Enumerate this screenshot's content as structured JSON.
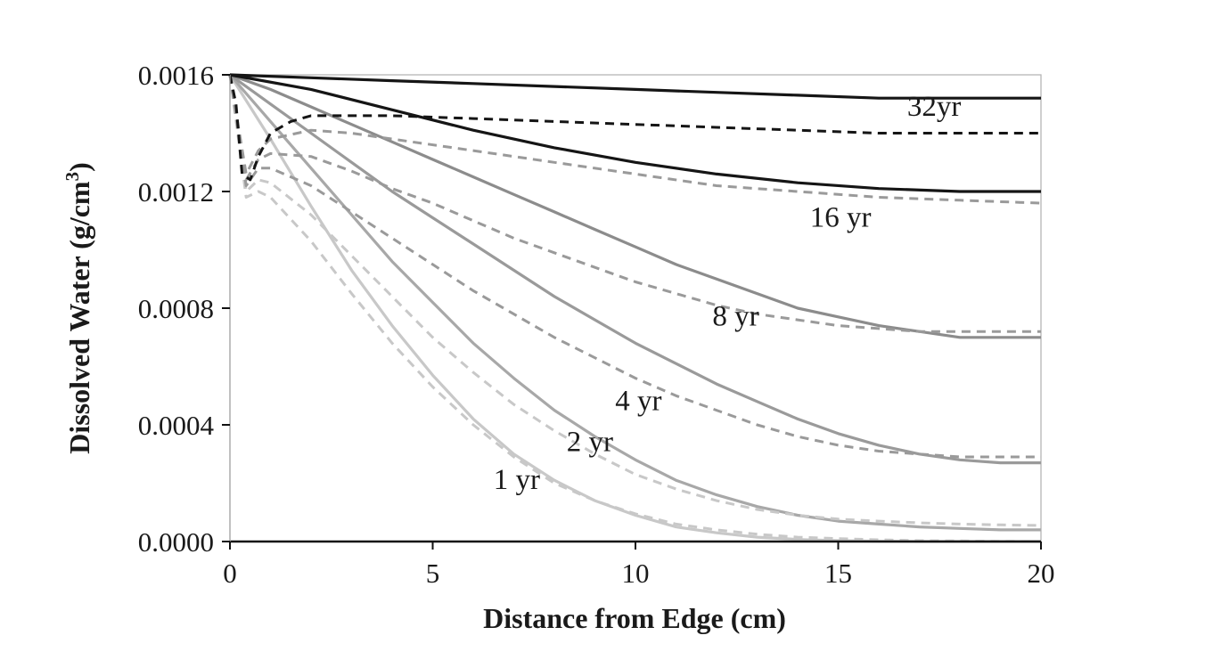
{
  "chart_data": {
    "type": "line",
    "title": "",
    "xlabel": "Distance from Edge (cm)",
    "ylabel": {
      "prefix": "Dissolved Water (g/cm",
      "superscript": "3",
      "suffix": ")"
    },
    "xlim": [
      0,
      20
    ],
    "ylim": [
      0,
      0.0016
    ],
    "x_ticks": [
      "0",
      "5",
      "10",
      "15",
      "20"
    ],
    "y_ticks": [
      "0.0000",
      "0.0004",
      "0.0008",
      "0.0012",
      "0.0016"
    ],
    "grid": false,
    "legend": "none",
    "colors": {
      "1yr": "#c8c8c8",
      "2yr": "#a8a8a8",
      "4yr": "#9a9a9a",
      "8yr": "#8c8c8c",
      "16yr": "#151515",
      "32yr": "#151515",
      "dashed_gray": "#9a9a9a",
      "dashed_black": "#151515"
    },
    "series": [
      {
        "label": "1 yr",
        "style": "solid",
        "x": [
          0,
          1,
          2,
          3,
          4,
          5,
          6,
          7,
          8,
          9,
          10,
          11,
          12,
          13,
          14,
          15,
          16,
          17,
          18,
          19,
          20
        ],
        "y": [
          0.0016,
          0.00138,
          0.00115,
          0.00093,
          0.00074,
          0.00057,
          0.00042,
          0.0003,
          0.00021,
          0.00014,
          9e-05,
          5e-05,
          3e-05,
          1.5e-05,
          7e-06,
          3e-06,
          1e-06,
          0,
          0,
          0,
          0
        ]
      },
      {
        "label": "",
        "style": "dashed",
        "x": [
          0,
          0.4,
          0.7,
          1,
          2,
          3,
          4,
          5,
          6,
          7,
          8,
          9,
          10,
          11,
          12,
          13,
          14,
          15,
          16,
          17,
          18,
          19,
          20
        ],
        "y": [
          0.0016,
          0.00118,
          0.0012,
          0.00118,
          0.00103,
          0.00085,
          0.00068,
          0.00053,
          0.0004,
          0.00029,
          0.0002,
          0.00014,
          9.5e-05,
          6e-05,
          4e-05,
          2.5e-05,
          1.5e-05,
          1e-05,
          6e-06,
          3e-06,
          2e-06,
          1e-06,
          0
        ]
      },
      {
        "label": "2 yr",
        "style": "solid",
        "x": [
          0,
          1,
          2,
          3,
          4,
          5,
          6,
          7,
          8,
          9,
          10,
          11,
          12,
          13,
          14,
          15,
          16,
          17,
          18,
          19,
          20
        ],
        "y": [
          0.0016,
          0.00144,
          0.00128,
          0.00112,
          0.00096,
          0.00082,
          0.00068,
          0.00056,
          0.00045,
          0.00036,
          0.00028,
          0.00021,
          0.00016,
          0.00012,
          9e-05,
          7e-05,
          6e-05,
          5e-05,
          4.5e-05,
          4e-05,
          4e-05
        ]
      },
      {
        "label": "",
        "style": "dashed",
        "x": [
          0,
          0.4,
          0.7,
          1,
          2,
          3,
          4,
          5,
          6,
          7,
          8,
          9,
          10,
          11,
          12,
          13,
          14,
          15,
          16,
          17,
          18,
          19,
          20
        ],
        "y": [
          0.0016,
          0.0012,
          0.00124,
          0.00123,
          0.00112,
          0.00098,
          0.00084,
          0.0007,
          0.00058,
          0.00047,
          0.00038,
          0.0003,
          0.00023,
          0.00018,
          0.00014,
          0.00011,
          9e-05,
          7.7e-05,
          7e-05,
          6.4e-05,
          6e-05,
          5.7e-05,
          5.5e-05
        ]
      },
      {
        "label": "4 yr",
        "style": "solid",
        "x": [
          0,
          1,
          2,
          3,
          4,
          5,
          6,
          7,
          8,
          9,
          10,
          11,
          12,
          13,
          14,
          15,
          16,
          17,
          18,
          19,
          20
        ],
        "y": [
          0.0016,
          0.0015,
          0.0014,
          0.0013,
          0.0012,
          0.00111,
          0.00102,
          0.00093,
          0.00084,
          0.00076,
          0.00068,
          0.00061,
          0.00054,
          0.00048,
          0.00042,
          0.00037,
          0.00033,
          0.0003,
          0.00028,
          0.00027,
          0.00027
        ]
      },
      {
        "label": "",
        "style": "dashed",
        "x": [
          0,
          0.4,
          0.7,
          1,
          2,
          3,
          4,
          5,
          6,
          7,
          8,
          9,
          10,
          11,
          12,
          13,
          14,
          15,
          16,
          17,
          18,
          19,
          20
        ],
        "y": [
          0.0016,
          0.00122,
          0.00128,
          0.00128,
          0.00122,
          0.00113,
          0.00104,
          0.00095,
          0.00086,
          0.00078,
          0.0007,
          0.00063,
          0.00056,
          0.0005,
          0.00045,
          0.0004,
          0.00036,
          0.00033,
          0.00031,
          0.0003,
          0.00029,
          0.00029,
          0.00029
        ]
      },
      {
        "label": "8 yr",
        "style": "solid",
        "x": [
          0,
          1,
          2,
          3,
          4,
          5,
          6,
          7,
          8,
          9,
          10,
          11,
          12,
          13,
          14,
          15,
          16,
          17,
          18,
          19,
          20
        ],
        "y": [
          0.0016,
          0.00155,
          0.00149,
          0.00143,
          0.00137,
          0.00131,
          0.00125,
          0.00119,
          0.00113,
          0.00107,
          0.00101,
          0.00095,
          0.0009,
          0.00085,
          0.0008,
          0.00077,
          0.00074,
          0.00072,
          0.0007,
          0.0007,
          0.0007
        ]
      },
      {
        "label": "",
        "style": "dashed",
        "x": [
          0,
          0.4,
          0.7,
          1,
          2,
          3,
          4,
          5,
          6,
          7,
          8,
          9,
          10,
          11,
          12,
          13,
          14,
          15,
          16,
          17,
          18,
          19,
          20
        ],
        "y": [
          0.0016,
          0.00124,
          0.00131,
          0.00133,
          0.00132,
          0.00127,
          0.00121,
          0.00116,
          0.0011,
          0.00104,
          0.00099,
          0.00094,
          0.00089,
          0.00085,
          0.00081,
          0.00078,
          0.00076,
          0.00074,
          0.00073,
          0.00072,
          0.00072,
          0.00072,
          0.00072
        ]
      },
      {
        "label": "16 yr",
        "style": "solid",
        "x": [
          0,
          2,
          4,
          6,
          8,
          10,
          12,
          14,
          16,
          18,
          20
        ],
        "y": [
          0.0016,
          0.00155,
          0.00148,
          0.00141,
          0.00135,
          0.0013,
          0.00126,
          0.00123,
          0.00121,
          0.0012,
          0.0012
        ]
      },
      {
        "label": "",
        "style": "dashed",
        "x": [
          0,
          0.4,
          0.7,
          1,
          2,
          3,
          4,
          6,
          8,
          10,
          12,
          14,
          16,
          18,
          20
        ],
        "y": [
          0.0016,
          0.00126,
          0.00134,
          0.00138,
          0.00141,
          0.0014,
          0.00138,
          0.00134,
          0.0013,
          0.00126,
          0.00122,
          0.0012,
          0.00118,
          0.00117,
          0.00116
        ]
      },
      {
        "label": "32yr",
        "style": "solid",
        "x": [
          0,
          2,
          4,
          6,
          8,
          10,
          12,
          14,
          16,
          18,
          20
        ],
        "y": [
          0.0016,
          0.00159,
          0.00158,
          0.00157,
          0.00156,
          0.00155,
          0.00154,
          0.00153,
          0.00152,
          0.00152,
          0.00152
        ]
      },
      {
        "label": "",
        "style": "dashed",
        "x": [
          0,
          0.15,
          0.3,
          0.5,
          0.7,
          1,
          1.5,
          2,
          3,
          4,
          6,
          8,
          10,
          12,
          14,
          16,
          18,
          20
        ],
        "y": [
          0.0016,
          0.0015,
          0.00126,
          0.00124,
          0.00132,
          0.0014,
          0.00144,
          0.00146,
          0.00146,
          0.00146,
          0.00145,
          0.00144,
          0.00143,
          0.00142,
          0.00141,
          0.0014,
          0.0014,
          0.0014
        ]
      }
    ]
  }
}
